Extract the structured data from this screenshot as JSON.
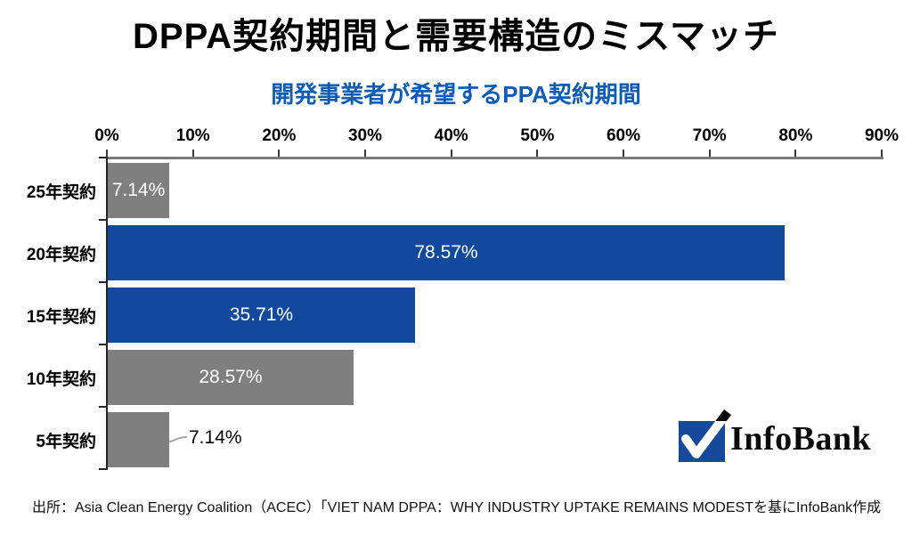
{
  "title": "DPPA契約期間と需要構造のミスマッチ",
  "chart_data": {
    "type": "bar",
    "orientation": "horizontal",
    "title": "開発事業者が希望するPPA契約期間",
    "categories": [
      "25年契約",
      "20年契約",
      "15年契約",
      "10年契約",
      "5年契約"
    ],
    "values": [
      7.14,
      78.57,
      35.71,
      28.57,
      7.14
    ],
    "value_labels": [
      "7.14%",
      "78.57%",
      "35.71%",
      "28.57%",
      "7.14%"
    ],
    "bar_colors": [
      "#7F7F7F",
      "#10499E",
      "#10499E",
      "#7F7F7F",
      "#7F7F7F"
    ],
    "label_positions": [
      "inside",
      "inside",
      "inside",
      "inside",
      "outside"
    ],
    "x_ticks": [
      "0%",
      "10%",
      "20%",
      "30%",
      "40%",
      "50%",
      "60%",
      "70%",
      "80%",
      "90%"
    ],
    "xlim": [
      0,
      90
    ],
    "xlabel": "",
    "ylabel": "",
    "grid": false,
    "legend": false
  },
  "colors": {
    "bar_blue": "#10499E",
    "bar_gray": "#7F7F7F",
    "subtitle_blue": "#0E5DB4",
    "value_label_inside": "#FFFFFF",
    "value_label_outside": "#000000",
    "leader_line": "#A6A6A6"
  },
  "logo": {
    "text": "InfoBank",
    "mark": "checkmark-in-blue-square",
    "mark_color": "#16489B"
  },
  "source": "出所：Asia Clean Energy Coalition（ACEC）「VIET NAM DPPA：WHY INDUSTRY UPTAKE REMAINS MODESTを基にInfoBank作成"
}
